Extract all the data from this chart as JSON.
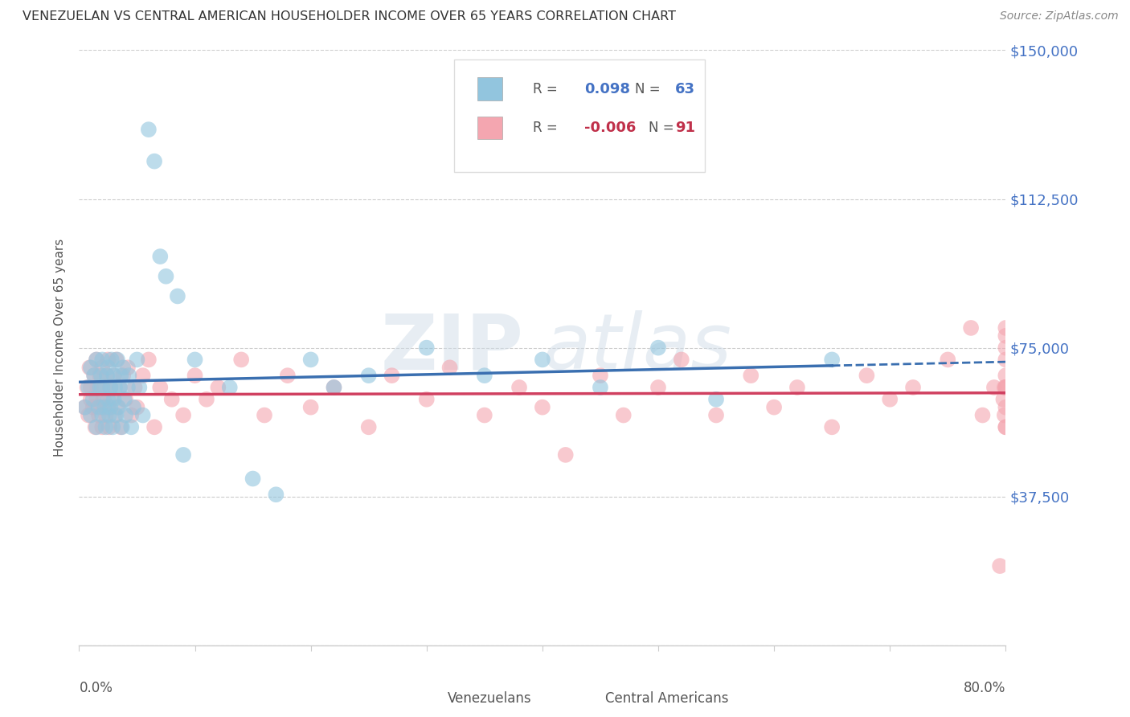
{
  "title": "VENEZUELAN VS CENTRAL AMERICAN HOUSEHOLDER INCOME OVER 65 YEARS CORRELATION CHART",
  "source": "Source: ZipAtlas.com",
  "ylabel": "Householder Income Over 65 years",
  "x_min": 0.0,
  "x_max": 0.8,
  "y_min": 0,
  "y_max": 150000,
  "y_ticks": [
    0,
    37500,
    75000,
    112500,
    150000
  ],
  "y_tick_labels": [
    "",
    "$37,500",
    "$75,000",
    "$112,500",
    "$150,000"
  ],
  "legend_venezuelans": "Venezuelans",
  "legend_central_americans": "Central Americans",
  "R_venezuelans": 0.098,
  "N_venezuelans": 63,
  "R_central_americans": -0.006,
  "N_central_americans": 91,
  "color_venezuelan": "#92C5DE",
  "color_central_american": "#F4A6B0",
  "color_line_venezuelan": "#3A6FB0",
  "color_line_central_american": "#D04060",
  "color_tick_label": "#4472C4",
  "color_r_negative": "#C0304A",
  "watermark_zip": "ZIP",
  "watermark_atlas": "atlas",
  "ven_x": [
    0.005,
    0.008,
    0.01,
    0.01,
    0.012,
    0.013,
    0.015,
    0.015,
    0.017,
    0.018,
    0.019,
    0.02,
    0.02,
    0.02,
    0.022,
    0.023,
    0.024,
    0.025,
    0.025,
    0.026,
    0.027,
    0.027,
    0.028,
    0.029,
    0.03,
    0.03,
    0.031,
    0.032,
    0.033,
    0.034,
    0.035,
    0.036,
    0.037,
    0.038,
    0.039,
    0.04,
    0.042,
    0.043,
    0.045,
    0.047,
    0.05,
    0.052,
    0.055,
    0.06,
    0.065,
    0.07,
    0.075,
    0.085,
    0.09,
    0.1,
    0.13,
    0.15,
    0.17,
    0.2,
    0.22,
    0.25,
    0.3,
    0.35,
    0.4,
    0.45,
    0.5,
    0.55,
    0.65
  ],
  "ven_y": [
    60000,
    65000,
    58000,
    70000,
    62000,
    68000,
    55000,
    72000,
    60000,
    65000,
    68000,
    58000,
    72000,
    65000,
    60000,
    55000,
    68000,
    62000,
    70000,
    58000,
    65000,
    60000,
    72000,
    55000,
    68000,
    62000,
    65000,
    58000,
    72000,
    60000,
    65000,
    68000,
    55000,
    70000,
    62000,
    58000,
    65000,
    68000,
    55000,
    60000,
    72000,
    65000,
    58000,
    130000,
    122000,
    98000,
    93000,
    88000,
    48000,
    72000,
    65000,
    42000,
    38000,
    72000,
    65000,
    68000,
    75000,
    68000,
    72000,
    65000,
    75000,
    62000,
    72000
  ],
  "ca_x": [
    0.005,
    0.007,
    0.008,
    0.009,
    0.01,
    0.01,
    0.012,
    0.013,
    0.014,
    0.015,
    0.015,
    0.016,
    0.017,
    0.018,
    0.019,
    0.02,
    0.02,
    0.021,
    0.022,
    0.023,
    0.024,
    0.025,
    0.025,
    0.026,
    0.027,
    0.028,
    0.03,
    0.031,
    0.032,
    0.033,
    0.035,
    0.036,
    0.038,
    0.04,
    0.042,
    0.045,
    0.048,
    0.05,
    0.055,
    0.06,
    0.065,
    0.07,
    0.08,
    0.09,
    0.1,
    0.11,
    0.12,
    0.14,
    0.16,
    0.18,
    0.2,
    0.22,
    0.25,
    0.27,
    0.3,
    0.32,
    0.35,
    0.38,
    0.4,
    0.42,
    0.45,
    0.47,
    0.5,
    0.52,
    0.55,
    0.58,
    0.6,
    0.62,
    0.65,
    0.68,
    0.7,
    0.72,
    0.75,
    0.77,
    0.78,
    0.79,
    0.795,
    0.798,
    0.799,
    0.799,
    0.8,
    0.8,
    0.8,
    0.8,
    0.8,
    0.8,
    0.8,
    0.8,
    0.8,
    0.8,
    0.8
  ],
  "ca_y": [
    60000,
    65000,
    58000,
    70000,
    62000,
    65000,
    60000,
    68000,
    55000,
    72000,
    62000,
    65000,
    58000,
    68000,
    60000,
    55000,
    70000,
    62000,
    65000,
    58000,
    68000,
    60000,
    72000,
    55000,
    65000,
    62000,
    68000,
    58000,
    72000,
    60000,
    65000,
    55000,
    68000,
    62000,
    70000,
    58000,
    65000,
    60000,
    68000,
    72000,
    55000,
    65000,
    62000,
    58000,
    68000,
    62000,
    65000,
    72000,
    58000,
    68000,
    60000,
    65000,
    55000,
    68000,
    62000,
    70000,
    58000,
    65000,
    60000,
    48000,
    68000,
    58000,
    65000,
    72000,
    58000,
    68000,
    60000,
    65000,
    55000,
    68000,
    62000,
    65000,
    72000,
    80000,
    58000,
    65000,
    20000,
    62000,
    58000,
    65000,
    68000,
    55000,
    60000,
    65000,
    72000,
    80000,
    65000,
    55000,
    65000,
    75000,
    78000
  ]
}
